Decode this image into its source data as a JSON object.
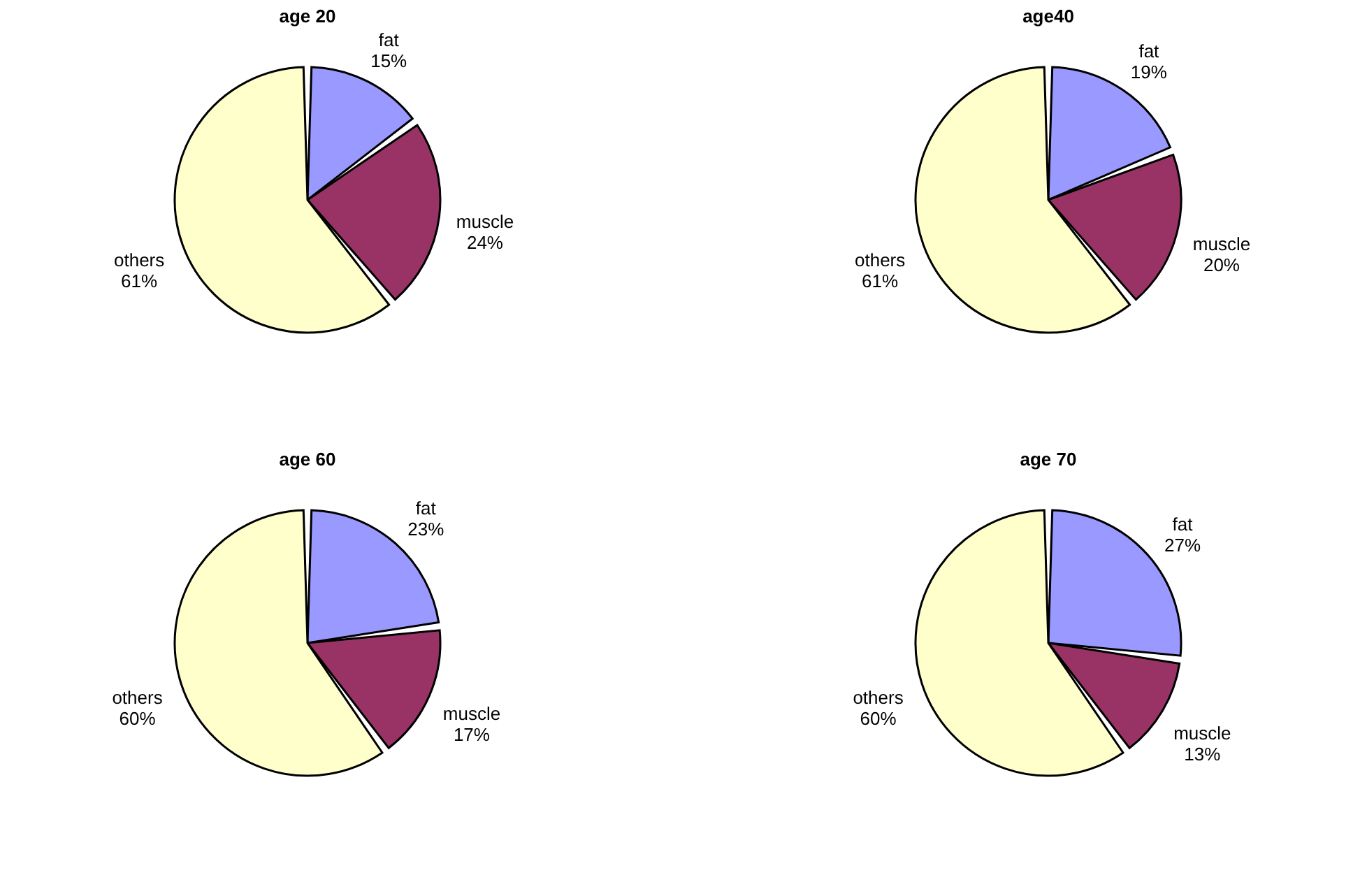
{
  "chart_data": [
    {
      "type": "pie",
      "title": "age 20",
      "categories": [
        "fat",
        "muscle",
        "others"
      ],
      "values": [
        15,
        24,
        61
      ],
      "value_labels": [
        "15%",
        "24%",
        "61%"
      ],
      "colors": [
        "#9999ff",
        "#993366",
        "#ffffcc"
      ]
    },
    {
      "type": "pie",
      "title": "age40",
      "categories": [
        "fat",
        "muscle",
        "others"
      ],
      "values": [
        19,
        20,
        61
      ],
      "value_labels": [
        "19%",
        "20%",
        "61%"
      ],
      "colors": [
        "#9999ff",
        "#993366",
        "#ffffcc"
      ]
    },
    {
      "type": "pie",
      "title": "age 60",
      "categories": [
        "fat",
        "muscle",
        "others"
      ],
      "values": [
        23,
        17,
        60
      ],
      "value_labels": [
        "23%",
        "17%",
        "60%"
      ],
      "colors": [
        "#9999ff",
        "#993366",
        "#ffffcc"
      ]
    },
    {
      "type": "pie",
      "title": "age 70",
      "categories": [
        "fat",
        "muscle",
        "others"
      ],
      "values": [
        27,
        13,
        60
      ],
      "value_labels": [
        "27%",
        "13%",
        "60%"
      ],
      "colors": [
        "#9999ff",
        "#993366",
        "#ffffcc"
      ]
    }
  ]
}
